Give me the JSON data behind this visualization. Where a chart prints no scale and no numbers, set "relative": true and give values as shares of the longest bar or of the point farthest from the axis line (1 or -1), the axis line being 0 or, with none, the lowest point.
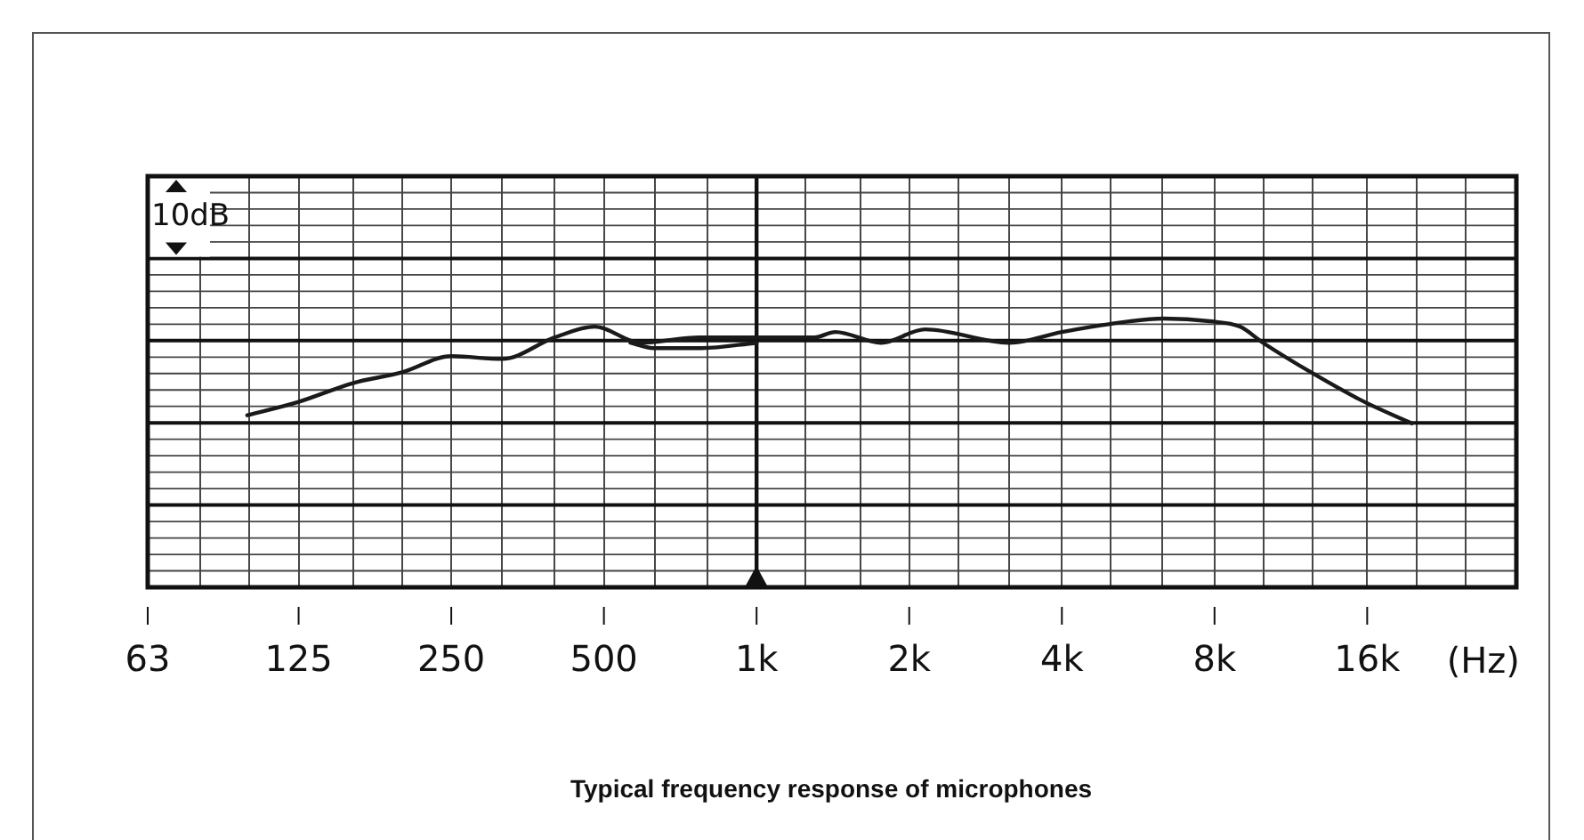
{
  "chart_data": {
    "type": "line",
    "title": "Typical frequency response of microphones",
    "xlabel": "(Hz)",
    "annotations": [
      "10dB"
    ],
    "relative": true,
    "log": "x",
    "grid": true,
    "legend": false,
    "marker": "none",
    "line_style": "solid",
    "xlim": [
      63,
      31500
    ],
    "xticks": [
      63,
      {
        "value": 80,
        "label": null
      },
      {
        "value": 100,
        "label": null
      },
      125,
      {
        "value": 160,
        "label": null
      },
      {
        "value": 200,
        "label": null
      },
      250,
      {
        "value": 315,
        "label": null
      },
      {
        "value": 400,
        "label": null
      },
      500,
      {
        "value": 630,
        "label": null
      },
      {
        "value": 800,
        "label": null
      },
      {
        "value": 1000,
        "label": "1k"
      },
      {
        "value": 1250,
        "label": null
      },
      {
        "value": 1600,
        "label": null
      },
      {
        "value": 2000,
        "label": "2k"
      },
      {
        "value": 2500,
        "label": null
      },
      {
        "value": 3150,
        "label": null
      },
      {
        "value": 4000,
        "label": "4k"
      },
      {
        "value": 5000,
        "label": null
      },
      {
        "value": 6300,
        "label": null
      },
      {
        "value": 8000,
        "label": "8k"
      },
      {
        "value": 10000,
        "label": null
      },
      {
        "value": 12500,
        "label": null
      },
      {
        "value": 16000,
        "label": "16k"
      },
      {
        "value": 20000,
        "label": null
      },
      {
        "value": 25000,
        "label": null
      },
      {
        "value": 31500,
        "label": null
      }
    ],
    "ref_lines": [
      {
        "axis": "x",
        "value": 1000
      }
    ],
    "series": [
      {
        "color": "#1a1a1a",
        "x": [
          99,
          125,
          160,
          200,
          250,
          315,
          400,
          480,
          590,
          770,
          1000,
          1300,
          1430,
          1760,
          2150,
          3150,
          4000,
          4980,
          6350,
          7830,
          8980,
          9970,
          12400,
          15800,
          19600
        ],
        "values": [
          0.64,
          0.69,
          0.76,
          0.8,
          0.86,
          0.85,
          0.93,
          0.97,
          0.91,
          0.93,
          0.93,
          0.93,
          0.95,
          0.91,
          0.96,
          0.91,
          0.95,
          0.98,
          1,
          0.99,
          0.97,
          0.91,
          0.8,
          0.69,
          0.61
        ]
      },
      {
        "color": "#1a1a1a",
        "x": [
          564,
          626,
          779,
          1000
        ],
        "values": [
          0.91,
          0.89,
          0.89,
          0.91
        ]
      }
    ]
  }
}
